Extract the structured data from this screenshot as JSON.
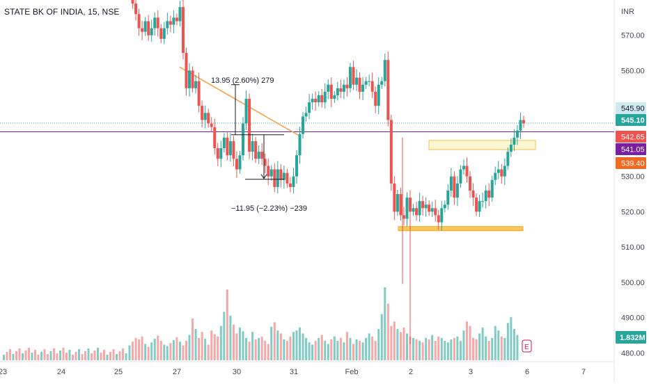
{
  "chart_data": {
    "type": "candlestick",
    "title": "STATE BK OF INDIA, 15, NSE",
    "currency": "INR",
    "y_ticks": [
      570,
      560,
      530,
      520,
      510,
      500,
      490,
      480
    ],
    "y_tick_labels": [
      "570.00",
      "560.00",
      "530.00",
      "520.00",
      "510.00",
      "500.00",
      "490.00",
      "480.00"
    ],
    "ylim": [
      477.5,
      580
    ],
    "x_ticks": [
      "23",
      "24",
      "25",
      "27",
      "30",
      "31",
      "Feb",
      "2",
      "3",
      "6",
      "7"
    ],
    "price_labels": [
      {
        "label": "545.90",
        "value": 545.9,
        "role": "high",
        "color": "#cfe9f1",
        "text_color": "#131722"
      },
      {
        "label": "545.10",
        "value": 545.1,
        "role": "last",
        "color": "#26a69a",
        "text_color": "#ffffff"
      },
      {
        "label": "542.65",
        "value": 542.65,
        "role": "line",
        "color": "#ef5350",
        "text_color": "#ffffff"
      },
      {
        "label": "541.05",
        "value": 541.05,
        "role": "level",
        "color": "#7b1fa2",
        "text_color": "#ffffff"
      },
      {
        "label": "539.40",
        "value": 539.4,
        "role": "low",
        "color": "#f26a22",
        "text_color": "#ffffff"
      }
    ],
    "volume_label": {
      "label": "1.832M",
      "color": "#26a69a"
    },
    "annotations": [
      {
        "text": "13.95 (2.60%) 279",
        "type": "measure-up"
      },
      {
        "text": "−11.95 (−2.23%) −239",
        "type": "measure-down"
      }
    ],
    "levels": [
      {
        "name": "purple-line",
        "value": 542.65,
        "color": "#7b1fa2"
      },
      {
        "name": "dotted-last",
        "value": 545.1,
        "color": "#26a69a"
      }
    ],
    "zones": [
      {
        "name": "resistance-zone",
        "y1": 540.2,
        "y2": 537.6,
        "color": "#fff3c4",
        "border": "#f7c14b"
      },
      {
        "name": "support-zone",
        "y1": 515.8,
        "y2": 514.6,
        "color": "#f7c14b",
        "border": "#f2a91d"
      }
    ],
    "trendline": {
      "color": "#f7a34b",
      "from": 561,
      "to": 541.5
    },
    "markers": [
      {
        "label": "E",
        "color": "#c2185b"
      }
    ],
    "colors": {
      "up": "#26a69a",
      "down": "#ef5350",
      "vol_up": "#80cbc4",
      "vol_down": "#f6a7a7"
    },
    "series": [
      {
        "values": [
          582,
          579,
          576,
          572,
          571,
          574,
          570,
          572,
          575,
          572,
          569,
          572,
          574,
          573,
          575,
          574,
          578,
          565,
          555,
          560,
          555,
          557,
          550,
          546,
          548,
          545,
          544,
          538,
          535,
          538,
          541,
          536,
          540,
          535,
          532,
          536,
          545,
          552,
          537,
          540,
          535,
          537,
          535,
          533,
          530,
          532,
          527,
          532,
          529,
          531,
          528,
          527,
          530,
          536,
          542,
          547,
          548,
          551,
          552,
          551,
          553,
          551,
          554,
          556,
          552,
          553,
          555,
          554,
          556,
          555,
          561,
          556,
          558,
          554,
          556,
          557,
          557,
          554,
          550,
          556,
          557,
          563,
          546,
          528,
          520,
          525,
          519,
          518,
          524,
          520,
          521,
          519,
          523,
          521,
          522,
          520,
          521,
          519,
          517,
          521,
          522,
          526,
          530,
          524,
          528,
          532,
          533,
          530,
          526,
          524,
          520,
          523,
          523,
          526,
          524,
          529,
          531,
          532,
          530,
          533,
          537,
          539,
          541,
          543,
          546,
          545
        ]
      }
    ],
    "volume": {
      "values": [
        2.0,
        2.5,
        3.0,
        2.8,
        3.2,
        2.2,
        1.8,
        2.4,
        2.9,
        3.3,
        2.6,
        2.1,
        1.9,
        2.3,
        2.7,
        3.1,
        2.5,
        2.0,
        2.6,
        3.4,
        5.6,
        4.2,
        3.0,
        3.8,
        2.9,
        2.1,
        4.0,
        3.5,
        3.2,
        4.6,
        6.5,
        9.5,
        6.0,
        4.8,
        3.6,
        4.4,
        3.9,
        3.0,
        2.5,
        3.8,
        2.8,
        3.0,
        3.2,
        2.6,
        2.2,
        4.5,
        5.1,
        4.0,
        3.6,
        2.8,
        2.6,
        3.2,
        3.8,
        4.0,
        4.4,
        3.6,
        3.0,
        2.4,
        2.1,
        2.6,
        3.0,
        3.4,
        2.6,
        2.2,
        2.8,
        3.2,
        2.6,
        3.0,
        2.4,
        3.8,
        3.0,
        2.2,
        2.8,
        2.6,
        2.4,
        3.0,
        3.6,
        3.2,
        2.6,
        4.2,
        6.2,
        9.8,
        7.6,
        4.6,
        5.2,
        4.2,
        3.8,
        4.4,
        3.6,
        3.2,
        3.0,
        2.8,
        2.6,
        2.4,
        3.0,
        2.8,
        3.4,
        2.6,
        3.2,
        3.0,
        2.6,
        2.4,
        2.8,
        3.0,
        3.2,
        2.6,
        4.0,
        5.2,
        4.6,
        3.0,
        2.8,
        3.6,
        4.4,
        3.2,
        2.6,
        3.0,
        4.6,
        4.0,
        3.2,
        3.0,
        5.0,
        5.8,
        4.2,
        3.4
      ]
    }
  }
}
